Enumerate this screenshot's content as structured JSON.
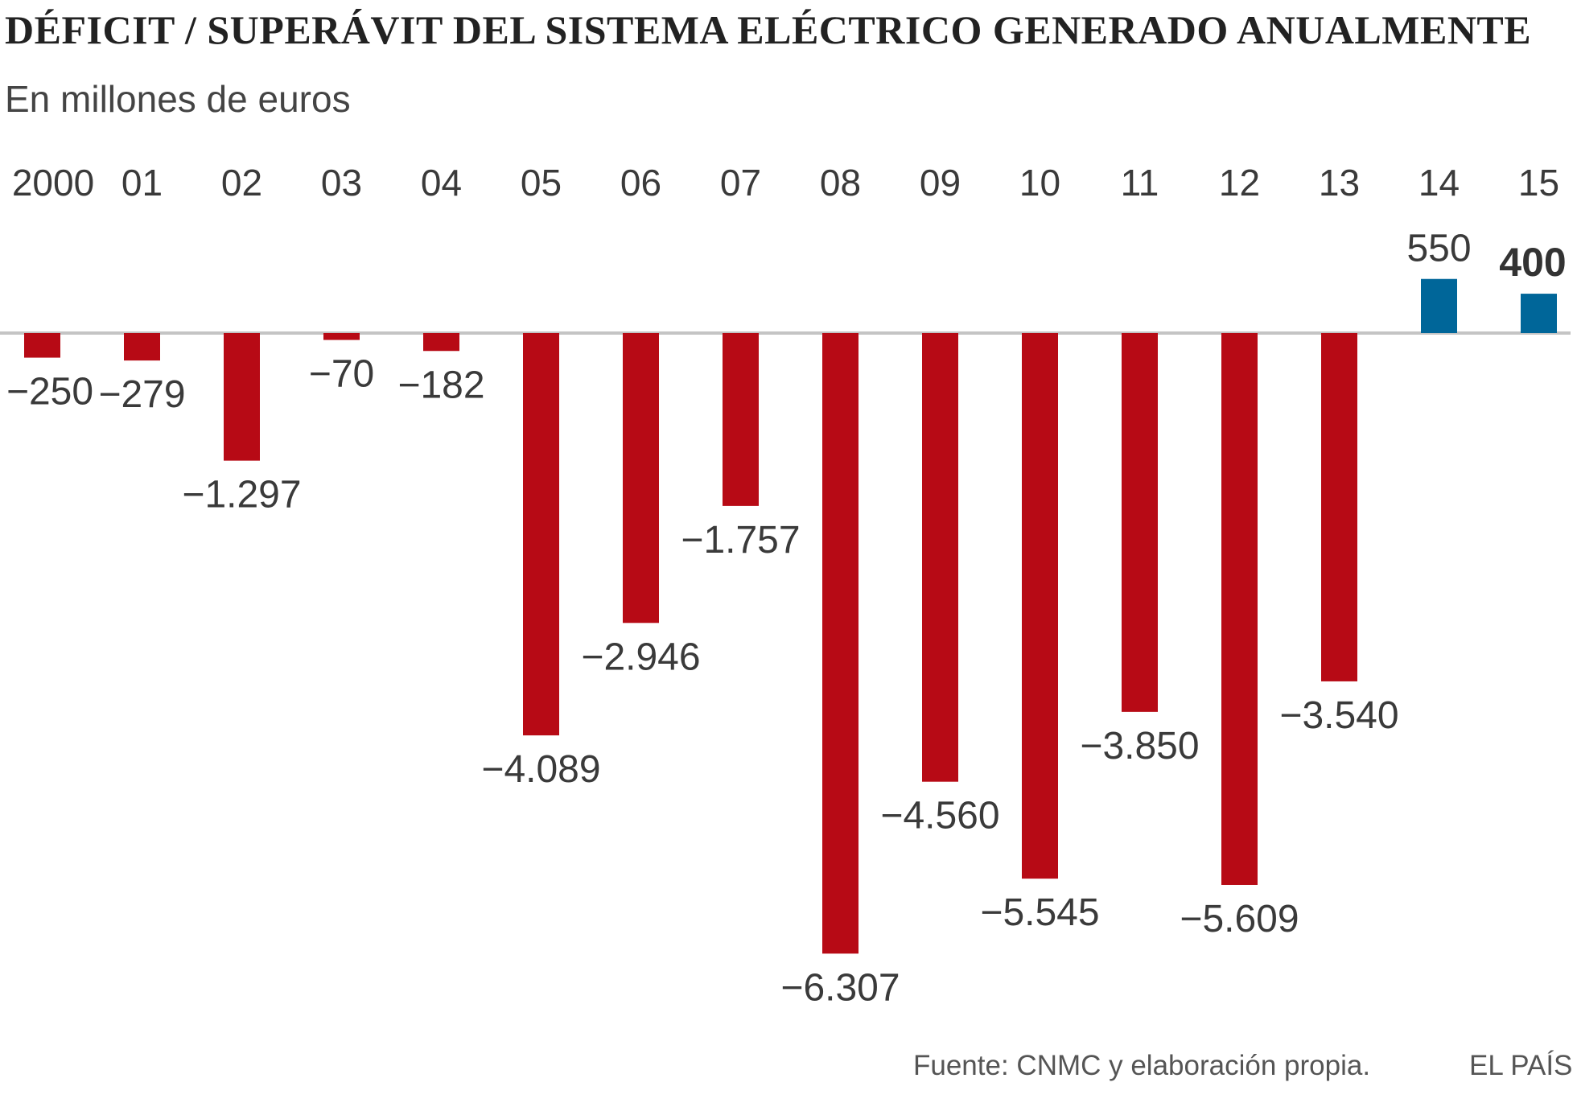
{
  "chart_data": {
    "type": "bar",
    "title": "DÉFICIT / SUPERÁVIT DEL SISTEMA ELÉCTRICO GENERADO ANUALMENTE",
    "subtitle": "En millones de euros",
    "categories": [
      "2000",
      "01",
      "02",
      "03",
      "04",
      "05",
      "06",
      "07",
      "08",
      "09",
      "10",
      "11",
      "12",
      "13",
      "14",
      "15"
    ],
    "values": [
      -250,
      -279,
      -1297,
      -70,
      -182,
      -4089,
      -2946,
      -1757,
      -6307,
      -4560,
      -5545,
      -3850,
      -5609,
      -3540,
      550,
      400
    ],
    "data_labels": [
      "−250",
      "−279",
      "−1.297",
      "−70",
      "−182",
      "−4.089",
      "−2.946",
      "−1.757",
      "−6.307",
      "−4.560",
      "−5.545",
      "−3.850",
      "−5.609",
      "−3.540",
      "550",
      "400"
    ],
    "highlighted_label_index": 15,
    "xlabel": "",
    "ylabel": "",
    "grid": false,
    "colors": {
      "negative": "#b70a15",
      "positive": "#006699",
      "baseline": "#c4c4c4",
      "text": "#3a3a3a"
    },
    "source": "Fuente: CNMC y elaboración propia.",
    "brand": "EL PAÍS"
  }
}
